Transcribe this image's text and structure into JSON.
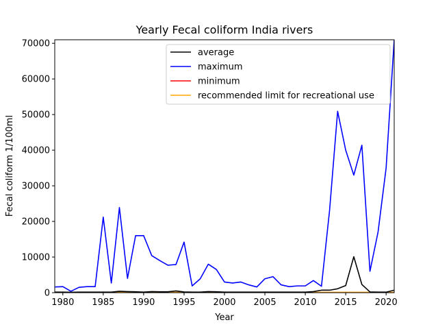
{
  "chart_data": {
    "type": "line",
    "title": "Yearly Fecal coliform India rivers",
    "xlabel": "Year",
    "ylabel": "Fecal coliform 1/100ml",
    "xlim": [
      1979,
      2021
    ],
    "ylim": [
      0,
      71000
    ],
    "xticks": [
      1980,
      1985,
      1990,
      1995,
      2000,
      2005,
      2010,
      2015,
      2020
    ],
    "yticks": [
      0,
      10000,
      20000,
      30000,
      40000,
      50000,
      60000,
      70000
    ],
    "grid": false,
    "legend_position": "top-right",
    "x": [
      1979,
      1980,
      1981,
      1982,
      1983,
      1984,
      1985,
      1986,
      1987,
      1988,
      1989,
      1990,
      1991,
      1992,
      1993,
      1994,
      1995,
      1996,
      1997,
      1998,
      1999,
      2000,
      2001,
      2002,
      2003,
      2004,
      2005,
      2006,
      2007,
      2008,
      2009,
      2010,
      2011,
      2012,
      2013,
      2014,
      2015,
      2016,
      2017,
      2018,
      2019,
      2020,
      2021
    ],
    "series": [
      {
        "name": "average",
        "color": "#000000",
        "values": [
          150,
          150,
          100,
          150,
          150,
          150,
          150,
          150,
          400,
          300,
          250,
          150,
          300,
          250,
          250,
          500,
          200,
          150,
          150,
          300,
          250,
          150,
          150,
          150,
          150,
          150,
          150,
          150,
          150,
          150,
          150,
          150,
          300,
          700,
          700,
          1100,
          2000,
          10100,
          2300,
          200,
          150,
          150,
          700
        ]
      },
      {
        "name": "maximum",
        "color": "#0000ff",
        "values": [
          1600,
          1700,
          400,
          1500,
          1700,
          1700,
          21200,
          2700,
          23900,
          4000,
          16000,
          16000,
          10400,
          9000,
          7700,
          7900,
          14200,
          1900,
          3900,
          8000,
          6500,
          3000,
          2700,
          3000,
          2200,
          1600,
          3900,
          4500,
          2200,
          1700,
          1900,
          1900,
          3400,
          1800,
          23000,
          50900,
          40000,
          33000,
          41400,
          6000,
          17000,
          35000,
          71000
        ]
      },
      {
        "name": "minimum",
        "color": "#ff0000",
        "values": [
          0,
          0,
          0,
          0,
          0,
          0,
          0,
          0,
          0,
          0,
          0,
          0,
          0,
          0,
          0,
          0,
          0,
          0,
          0,
          0,
          0,
          0,
          0,
          0,
          0,
          0,
          0,
          0,
          0,
          0,
          0,
          0,
          0,
          0,
          0,
          0,
          0,
          0,
          0,
          0,
          0,
          0,
          0
        ]
      },
      {
        "name": "recommended limit for recreational use",
        "color": "#ffa500",
        "values": [
          100,
          100,
          100,
          100,
          100,
          100,
          100,
          100,
          100,
          100,
          100,
          100,
          100,
          100,
          100,
          100,
          100,
          100,
          100,
          100,
          100,
          100,
          100,
          100,
          100,
          100,
          100,
          100,
          100,
          100,
          100,
          100,
          100,
          100,
          100,
          100,
          100,
          100,
          100,
          100,
          100,
          100,
          100
        ]
      }
    ]
  }
}
